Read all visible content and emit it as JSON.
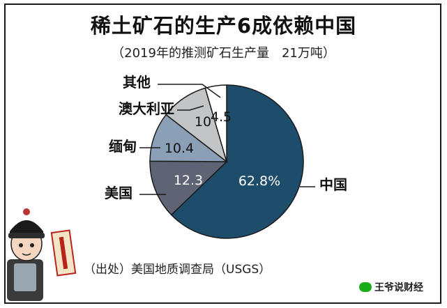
{
  "title": "稀土矿石的生产6成依赖中国",
  "subtitle": "（2019年的推测矿石生产量　21万吨）",
  "source": "（出处）美国地质调查局（USGS）",
  "watermark": "王爷说财经",
  "watermark_icon": "wechat-icon",
  "illustration": "cartoon-official-character",
  "chart_data": {
    "type": "pie",
    "title": "稀土矿石的生产6成依赖中国",
    "subtitle": "（2019年的推测矿石生产量　21万吨）",
    "start_angle_deg": 0,
    "direction": "clockwise",
    "slices": [
      {
        "label": "中国",
        "value": 62.8,
        "value_label": "62.8%",
        "color": "#1e4d6b",
        "text_color": "#ffffff"
      },
      {
        "label": "美国",
        "value": 12.3,
        "value_label": "12.3",
        "color": "#5e6474",
        "text_color": "#ffffff"
      },
      {
        "label": "缅甸",
        "value": 10.4,
        "value_label": "10.4",
        "color": "#8ba0b6",
        "text_color": "#111111"
      },
      {
        "label": "澳大利亚",
        "value": 10,
        "value_label": "10",
        "color": "#c2c4c6",
        "text_color": "#111111"
      },
      {
        "label": "其他",
        "value": 4.5,
        "value_label": "4.5",
        "color": "#ffffff",
        "text_color": "#111111"
      }
    ],
    "stroke_color": "#1a1a1a"
  }
}
